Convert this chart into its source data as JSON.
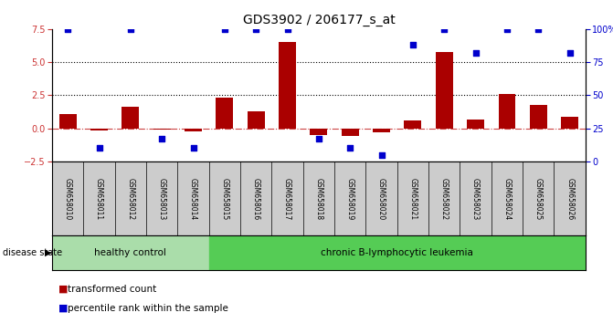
{
  "title": "GDS3902 / 206177_s_at",
  "samples": [
    "GSM658010",
    "GSM658011",
    "GSM658012",
    "GSM658013",
    "GSM658014",
    "GSM658015",
    "GSM658016",
    "GSM658017",
    "GSM658018",
    "GSM658019",
    "GSM658020",
    "GSM658021",
    "GSM658022",
    "GSM658023",
    "GSM658024",
    "GSM658025",
    "GSM658026"
  ],
  "bar_values": [
    1.1,
    -0.15,
    1.6,
    -0.1,
    -0.2,
    2.3,
    1.3,
    6.5,
    -0.5,
    -0.55,
    -0.3,
    0.6,
    5.8,
    0.7,
    2.6,
    1.8,
    0.9
  ],
  "dot_values": [
    100,
    10,
    100,
    17,
    10,
    100,
    100,
    100,
    17,
    10,
    5,
    88,
    100,
    82,
    100,
    100,
    82
  ],
  "healthy_count": 5,
  "ylim_left": [
    -2.5,
    7.5
  ],
  "ylim_right": [
    0,
    100
  ],
  "yticks_left": [
    -2.5,
    0,
    2.5,
    5,
    7.5
  ],
  "yticks_right": [
    0,
    25,
    50,
    75,
    100
  ],
  "yticklabels_right": [
    "0",
    "25",
    "50",
    "75",
    "100%"
  ],
  "bar_color": "#AA0000",
  "dot_color": "#0000CC",
  "zero_line_color": "#CC4444",
  "tick_area_bg": "#cccccc",
  "healthy_color": "#aaddaa",
  "leukemia_color": "#55cc55",
  "disease_label_healthy": "healthy control",
  "disease_label_leukemia": "chronic B-lymphocytic leukemia",
  "legend_bar": "transformed count",
  "legend_dot": "percentile rank within the sample",
  "title_fontsize": 10,
  "tick_fontsize": 7,
  "sample_fontsize": 5.5
}
